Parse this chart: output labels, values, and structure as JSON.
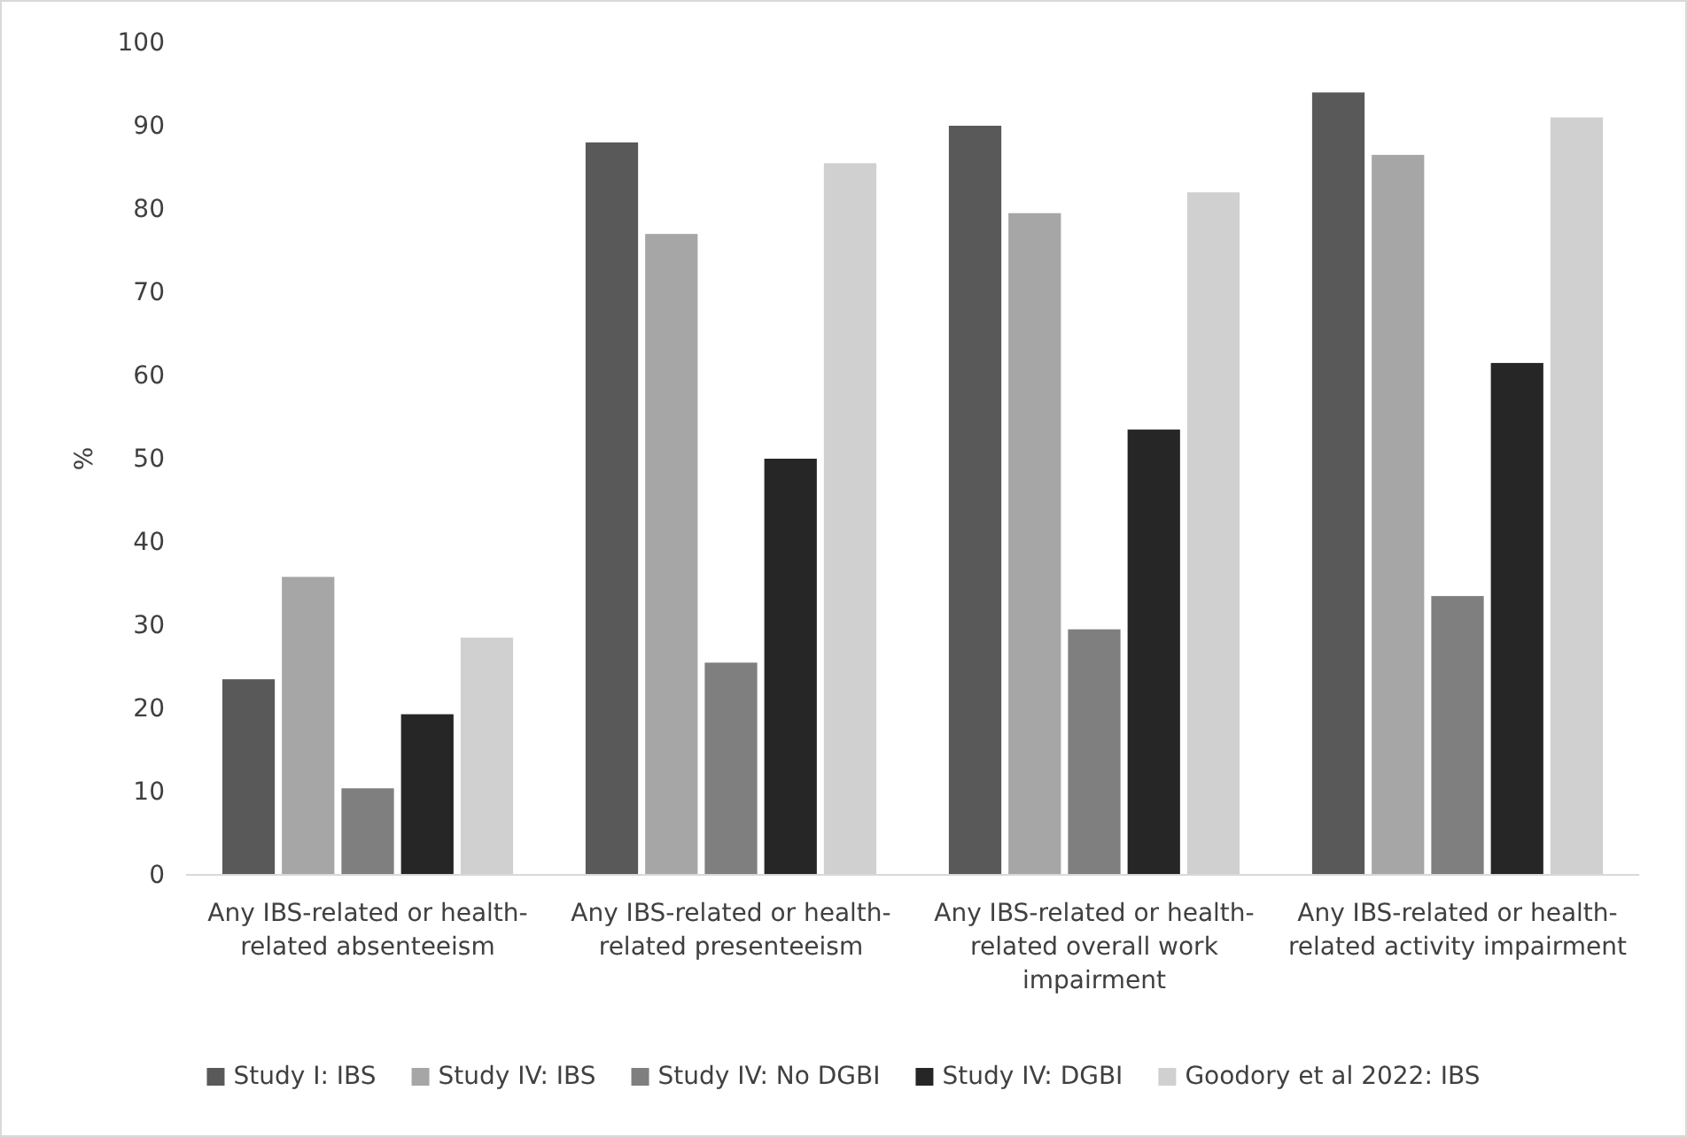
{
  "chart_data": {
    "type": "bar",
    "ylabel": "%",
    "categories": [
      "Any IBS-related or health-related absenteeism",
      "Any IBS-related or health-related presenteeism",
      "Any IBS-related or health-related overall work impairment",
      "Any IBS-related or health-related activity impairment"
    ],
    "series": [
      {
        "name": "Study I: IBS",
        "color": "#595959",
        "values": [
          23.5,
          88,
          90,
          94
        ]
      },
      {
        "name": "Study IV: IBS",
        "color": "#a6a6a6",
        "values": [
          35.8,
          77,
          79.5,
          86.5
        ]
      },
      {
        "name": "Study IV: No DGBI",
        "color": "#7f7f7f",
        "values": [
          10.4,
          25.5,
          29.5,
          33.5
        ]
      },
      {
        "name": "Study IV: DGBI",
        "color": "#262626",
        "values": [
          19.3,
          50,
          53.5,
          61.5
        ]
      },
      {
        "name": "Goodory et al 2022: IBS",
        "color": "#d0d0d0",
        "values": [
          28.5,
          85.5,
          82,
          91
        ]
      }
    ],
    "ylim": [
      0,
      100
    ],
    "yticks": [
      0,
      10,
      20,
      30,
      40,
      50,
      60,
      70,
      80,
      90,
      100
    ],
    "legend": "bottom"
  }
}
